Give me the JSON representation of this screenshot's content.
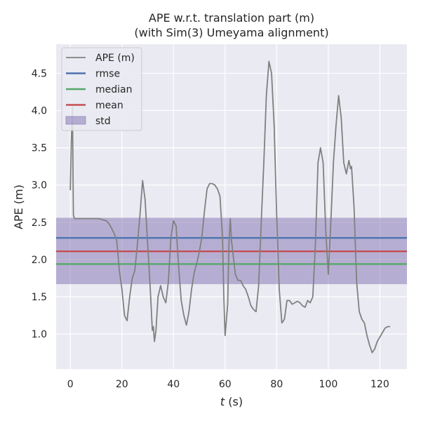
{
  "chart_data": {
    "type": "line",
    "title_line1": "APE w.r.t. translation part (m)",
    "title_line2": "(with Sim(3) Umeyama alignment)",
    "xlabel_var": "t",
    "xlabel_unit": " (s)",
    "ylabel": "APE (m)",
    "xlim": [
      -5.5,
      130.5
    ],
    "ylim": [
      0.53,
      4.89
    ],
    "xticks": [
      0,
      20,
      40,
      60,
      80,
      100,
      120
    ],
    "yticks": [
      1.0,
      1.5,
      2.0,
      2.5,
      3.0,
      3.5,
      4.0,
      4.5
    ],
    "grid": true,
    "legend_position": "top-left",
    "series": [
      {
        "name": "APE (m)",
        "color": "#808080",
        "points": [
          [
            0,
            2.93
          ],
          [
            0.4,
            3.6
          ],
          [
            0.8,
            4.05
          ],
          [
            1.2,
            2.6
          ],
          [
            1.6,
            2.55
          ],
          [
            4,
            2.55
          ],
          [
            8,
            2.55
          ],
          [
            11,
            2.55
          ],
          [
            13,
            2.53
          ],
          [
            14,
            2.52
          ],
          [
            15,
            2.48
          ],
          [
            16,
            2.42
          ],
          [
            17,
            2.35
          ],
          [
            18,
            2.25
          ],
          [
            19,
            1.85
          ],
          [
            20,
            1.6
          ],
          [
            21,
            1.25
          ],
          [
            22,
            1.18
          ],
          [
            23,
            1.5
          ],
          [
            24,
            1.75
          ],
          [
            25,
            1.85
          ],
          [
            26,
            2.2
          ],
          [
            27,
            2.6
          ],
          [
            28,
            3.06
          ],
          [
            29,
            2.8
          ],
          [
            30,
            2.2
          ],
          [
            31,
            1.6
          ],
          [
            31.8,
            1.05
          ],
          [
            32.2,
            1.1
          ],
          [
            32.6,
            0.9
          ],
          [
            33.2,
            1.05
          ],
          [
            34,
            1.5
          ],
          [
            35,
            1.65
          ],
          [
            36,
            1.5
          ],
          [
            37,
            1.42
          ],
          [
            38,
            1.7
          ],
          [
            39,
            2.3
          ],
          [
            40,
            2.52
          ],
          [
            41,
            2.45
          ],
          [
            42,
            1.9
          ],
          [
            43,
            1.45
          ],
          [
            44,
            1.25
          ],
          [
            45,
            1.12
          ],
          [
            46,
            1.3
          ],
          [
            47,
            1.6
          ],
          [
            48,
            1.82
          ],
          [
            49,
            1.95
          ],
          [
            50,
            2.1
          ],
          [
            51,
            2.3
          ],
          [
            52,
            2.65
          ],
          [
            53,
            2.95
          ],
          [
            54,
            3.02
          ],
          [
            55,
            3.02
          ],
          [
            56,
            3.0
          ],
          [
            57,
            2.95
          ],
          [
            58,
            2.85
          ],
          [
            59,
            2.3
          ],
          [
            59.5,
            1.5
          ],
          [
            60,
            0.98
          ],
          [
            61,
            1.4
          ],
          [
            61.5,
            2.2
          ],
          [
            62,
            2.55
          ],
          [
            62.5,
            2.25
          ],
          [
            63,
            2.1
          ],
          [
            64,
            1.8
          ],
          [
            65,
            1.72
          ],
          [
            66,
            1.72
          ],
          [
            67,
            1.65
          ],
          [
            68,
            1.6
          ],
          [
            69,
            1.5
          ],
          [
            70,
            1.38
          ],
          [
            71,
            1.33
          ],
          [
            72,
            1.3
          ],
          [
            73,
            1.65
          ],
          [
            74,
            2.5
          ],
          [
            75,
            3.3
          ],
          [
            76,
            4.2
          ],
          [
            77,
            4.66
          ],
          [
            78,
            4.5
          ],
          [
            79,
            3.8
          ],
          [
            80,
            2.6
          ],
          [
            81,
            1.6
          ],
          [
            82,
            1.15
          ],
          [
            83,
            1.2
          ],
          [
            84,
            1.45
          ],
          [
            85,
            1.45
          ],
          [
            86,
            1.4
          ],
          [
            87,
            1.42
          ],
          [
            88,
            1.44
          ],
          [
            89,
            1.42
          ],
          [
            90,
            1.38
          ],
          [
            91,
            1.36
          ],
          [
            92,
            1.45
          ],
          [
            93,
            1.42
          ],
          [
            94,
            1.5
          ],
          [
            95,
            2.2
          ],
          [
            96,
            3.3
          ],
          [
            97,
            3.5
          ],
          [
            98,
            3.3
          ],
          [
            99,
            2.4
          ],
          [
            100,
            1.8
          ],
          [
            101,
            2.5
          ],
          [
            102,
            3.3
          ],
          [
            103,
            3.8
          ],
          [
            104,
            4.2
          ],
          [
            105,
            3.9
          ],
          [
            106,
            3.3
          ],
          [
            107,
            3.15
          ],
          [
            108,
            3.33
          ],
          [
            108.6,
            3.22
          ],
          [
            109,
            3.25
          ],
          [
            110,
            2.7
          ],
          [
            111,
            1.7
          ],
          [
            112,
            1.3
          ],
          [
            113,
            1.2
          ],
          [
            114,
            1.15
          ],
          [
            115,
            0.98
          ],
          [
            116,
            0.85
          ],
          [
            117,
            0.75
          ],
          [
            118,
            0.8
          ],
          [
            119,
            0.9
          ],
          [
            120,
            0.96
          ],
          [
            121,
            1.02
          ],
          [
            122,
            1.08
          ],
          [
            123,
            1.1
          ],
          [
            124,
            1.1
          ]
        ]
      },
      {
        "name": "rmse",
        "color": "#4c72b0",
        "value": 2.29
      },
      {
        "name": "median",
        "color": "#55a868",
        "value": 1.94
      },
      {
        "name": "mean",
        "color": "#c44e52",
        "value": 2.11
      }
    ],
    "std_band": {
      "name": "std",
      "color": "#8172b2",
      "lower": 1.67,
      "upper": 2.56
    },
    "legend": [
      "APE (m)",
      "rmse",
      "median",
      "mean",
      "std"
    ]
  }
}
